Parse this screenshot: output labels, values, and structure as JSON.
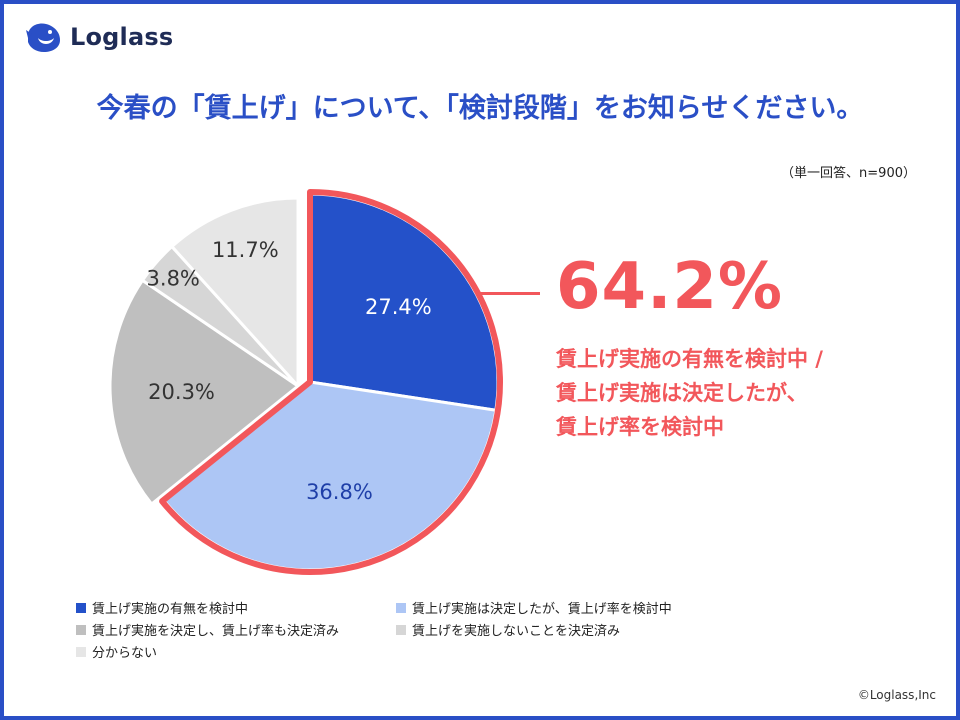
{
  "brand": {
    "name": "Loglass",
    "icon": "whale-logo-icon"
  },
  "title": "今春の「賃上げ」について、「検討段階」をお知らせください。",
  "note": "（単一回答、n=900）",
  "callout": {
    "percent": "64.2%",
    "lines": [
      "賃上げ実施の有無を検討中 /",
      "賃上げ実施は決定したが、",
      "賃上げ率を検討中"
    ]
  },
  "copyright": "©Loglass,Inc",
  "colors": {
    "accent": "#2a4fc6",
    "highlight": "#f2575b"
  },
  "chart_data": {
    "type": "pie",
    "title": "今春の「賃上げ」について、「検討段階」をお知らせください。",
    "slices": [
      {
        "label": "賃上げ実施の有無を検討中",
        "value": 27.4,
        "display": "27.4%",
        "color": "#2451c9",
        "text_color": "#ffffff",
        "highlighted": true
      },
      {
        "label": "賃上げ実施は決定したが、賃上げ率を検討中",
        "value": 36.8,
        "display": "36.8%",
        "color": "#adc6f5",
        "text_color": "#1f3fa8",
        "highlighted": true
      },
      {
        "label": "賃上げ実施を決定し、賃上げ率も決定済み",
        "value": 20.3,
        "display": "20.3%",
        "color": "#bfbfbf",
        "text_color": "#333333",
        "highlighted": false
      },
      {
        "label": "賃上げを実施しないことを決定済み",
        "value": 3.8,
        "display": "3.8%",
        "color": "#d6d6d6",
        "text_color": "#333333",
        "highlighted": false
      },
      {
        "label": "分からない",
        "value": 11.7,
        "display": "11.7%",
        "color": "#e6e6e6",
        "text_color": "#333333",
        "highlighted": false
      }
    ],
    "legend_placement": "bottom"
  }
}
